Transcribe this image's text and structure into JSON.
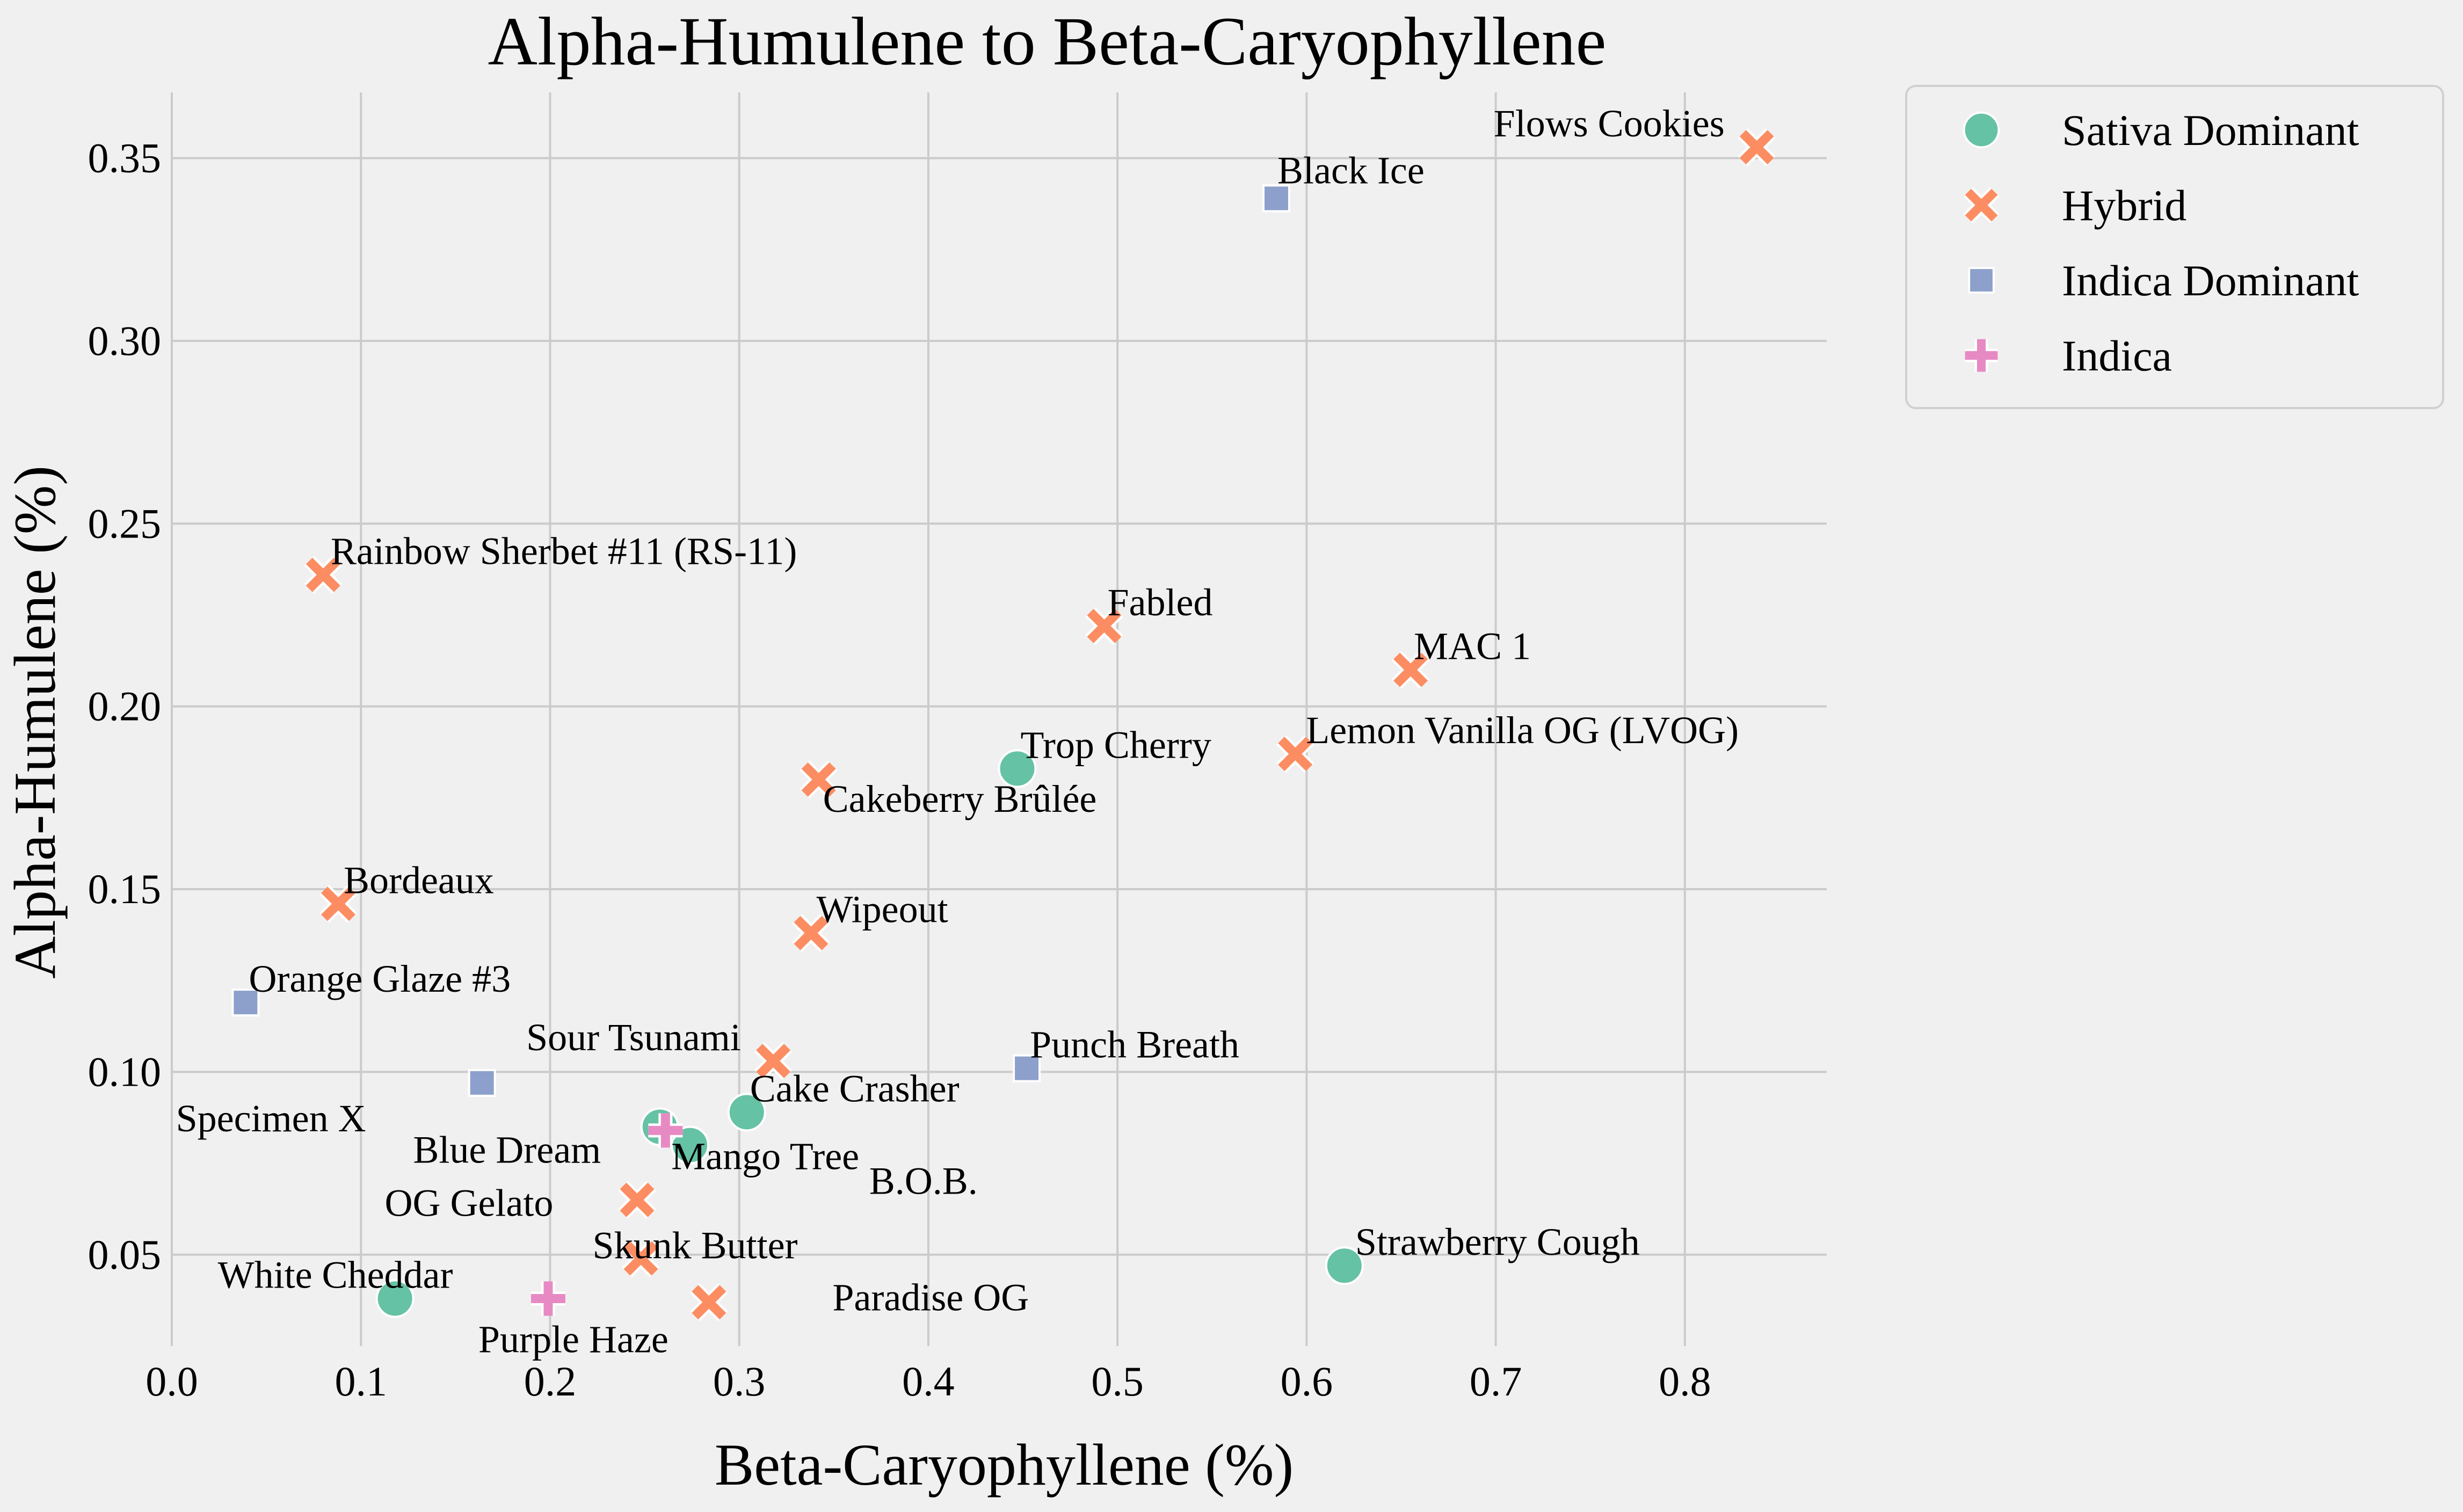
{
  "chart_data": {
    "type": "scatter",
    "title": "Alpha-Humulene to Beta-Caryophyllene",
    "xlabel": "Beta-Caryophyllene (%)",
    "ylabel": "Alpha-Humulene (%)",
    "xlim": [
      0.0,
      0.875
    ],
    "ylim": [
      0.025,
      0.368
    ],
    "xticks": [
      0.0,
      0.1,
      0.2,
      0.3,
      0.4,
      0.5,
      0.6,
      0.7,
      0.8
    ],
    "xtick_labels": [
      "0.0",
      "0.1",
      "0.2",
      "0.3",
      "0.4",
      "0.5",
      "0.6",
      "0.7",
      "0.8"
    ],
    "yticks": [
      0.05,
      0.1,
      0.15,
      0.2,
      0.25,
      0.3,
      0.35
    ],
    "ytick_labels": [
      "0.05",
      "0.10",
      "0.15",
      "0.20",
      "0.25",
      "0.30",
      "0.35"
    ],
    "grid": true,
    "legend_position": "outside-top-right",
    "series": [
      {
        "name": "Sativa Dominant",
        "marker": "circle",
        "color": "#66c2a5",
        "points": [
          {
            "label": "Trop Cherry",
            "x": 0.447,
            "y": 0.183
          },
          {
            "label": "Cake Crasher",
            "x": 0.304,
            "y": 0.089
          },
          {
            "label": "Mango Tree",
            "x": 0.274,
            "y": 0.08
          },
          {
            "label": "B.O.B.",
            "x": 0.258,
            "y": 0.085
          },
          {
            "label": "Strawberry Cough",
            "x": 0.62,
            "y": 0.047
          },
          {
            "label": "White Cheddar",
            "x": 0.118,
            "y": 0.038
          }
        ]
      },
      {
        "name": "Hybrid",
        "marker": "x",
        "color": "#fc8d62",
        "points": [
          {
            "label": "Flows Cookies",
            "x": 0.838,
            "y": 0.353
          },
          {
            "label": "Rainbow Sherbet #11 (RS-11)",
            "x": 0.08,
            "y": 0.236
          },
          {
            "label": "Fabled",
            "x": 0.493,
            "y": 0.222
          },
          {
            "label": "MAC 1",
            "x": 0.655,
            "y": 0.21
          },
          {
            "label": "Lemon Vanilla OG (LVOG)",
            "x": 0.594,
            "y": 0.187
          },
          {
            "label": "Cakeberry Brûlée",
            "x": 0.342,
            "y": 0.18
          },
          {
            "label": "Bordeaux",
            "x": 0.088,
            "y": 0.146
          },
          {
            "label": "Wipeout",
            "x": 0.338,
            "y": 0.138
          },
          {
            "label": "Sour Tsunami",
            "x": 0.318,
            "y": 0.103
          },
          {
            "label": "OG Gelato",
            "x": 0.246,
            "y": 0.065
          },
          {
            "label": "Skunk Butter",
            "x": 0.248,
            "y": 0.049
          },
          {
            "label": "Paradise OG",
            "x": 0.284,
            "y": 0.037
          }
        ]
      },
      {
        "name": "Indica Dominant",
        "marker": "square",
        "color": "#8da0cb",
        "points": [
          {
            "label": "Black Ice",
            "x": 0.584,
            "y": 0.339
          },
          {
            "label": "Orange Glaze #3",
            "x": 0.039,
            "y": 0.119
          },
          {
            "label": "Punch Breath",
            "x": 0.452,
            "y": 0.101
          },
          {
            "label": "Specimen X",
            "x": 0.164,
            "y": 0.097
          }
        ]
      },
      {
        "name": "Indica",
        "marker": "plus",
        "color": "#e78ac3",
        "points": [
          {
            "label": "Blue Dream",
            "x": 0.261,
            "y": 0.084
          },
          {
            "label": "Purple Haze",
            "x": 0.199,
            "y": 0.038
          }
        ]
      }
    ]
  }
}
